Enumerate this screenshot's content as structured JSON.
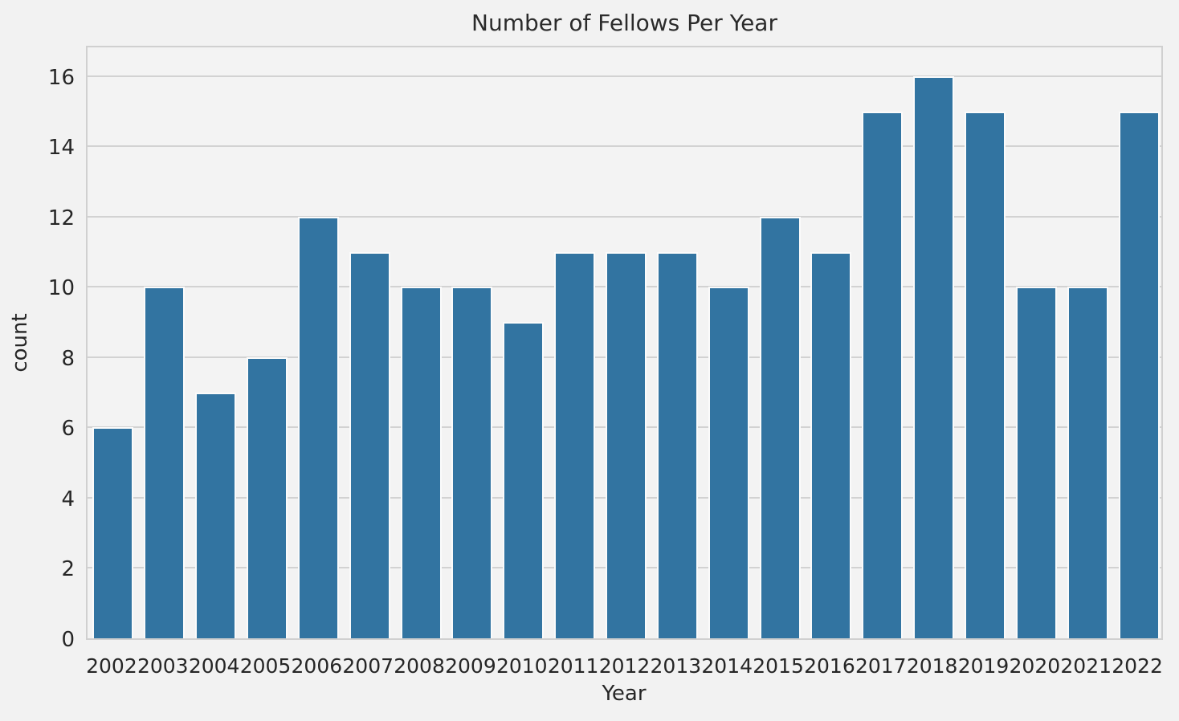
{
  "chart_data": {
    "type": "bar",
    "title": "Number of Fellows Per Year",
    "xlabel": "Year",
    "ylabel": "count",
    "categories": [
      "2002",
      "2003",
      "2004",
      "2005",
      "2006",
      "2007",
      "2008",
      "2009",
      "2010",
      "2011",
      "2012",
      "2013",
      "2014",
      "2015",
      "2016",
      "2017",
      "2018",
      "2019",
      "2020",
      "2021",
      "2022"
    ],
    "values": [
      6,
      10,
      7,
      8,
      12,
      11,
      10,
      10,
      9,
      11,
      11,
      11,
      10,
      12,
      11,
      15,
      16,
      15,
      10,
      10,
      15
    ],
    "yticks": [
      0,
      2,
      4,
      6,
      8,
      10,
      12,
      14,
      16
    ],
    "ylim": [
      0,
      16.91
    ],
    "grid": "horizontal",
    "legend": "none",
    "bar_color": "#3274a1",
    "bar_edge_color": "#fbfbfb",
    "background_color": "#f2f2f2",
    "grid_color": "#d2d2d2",
    "text_color": "#262626"
  }
}
